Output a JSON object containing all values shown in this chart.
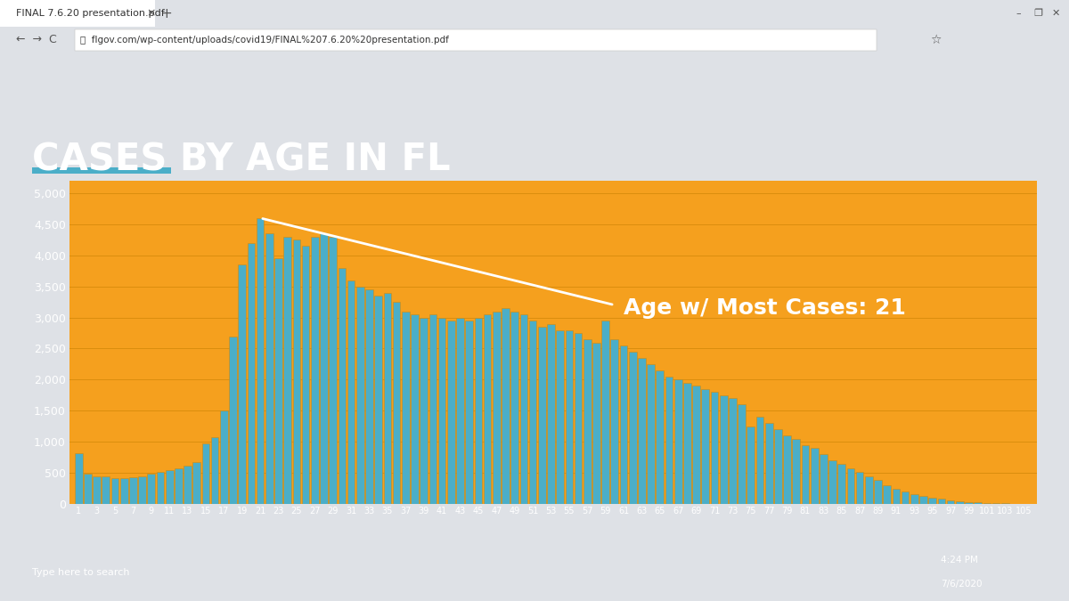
{
  "title": "CASES BY AGE IN FL",
  "title_color": "#FFFFFF",
  "background_color": "#F5A01E",
  "bar_color": "#4BAEC8",
  "bar_edge_color": "#D4890A",
  "grid_color": "#D4890A",
  "underline_color": "#4BAEC8",
  "annotation_text": "Age w/ Most Cases: 21",
  "annotation_color": "#FFFFFF",
  "ylim": [
    0,
    5200
  ],
  "yticks": [
    0,
    500,
    1000,
    1500,
    2000,
    2500,
    3000,
    3500,
    4000,
    4500,
    5000
  ],
  "ages": [
    1,
    2,
    3,
    4,
    5,
    6,
    7,
    8,
    9,
    10,
    11,
    12,
    13,
    14,
    15,
    16,
    17,
    18,
    19,
    20,
    21,
    22,
    23,
    24,
    25,
    26,
    27,
    28,
    29,
    30,
    31,
    32,
    33,
    34,
    35,
    36,
    37,
    38,
    39,
    40,
    41,
    42,
    43,
    44,
    45,
    46,
    47,
    48,
    49,
    50,
    51,
    52,
    53,
    54,
    55,
    56,
    57,
    58,
    59,
    60,
    61,
    62,
    63,
    64,
    65,
    66,
    67,
    68,
    69,
    70,
    71,
    72,
    73,
    74,
    75,
    76,
    77,
    78,
    79,
    80,
    81,
    82,
    83,
    84,
    85,
    86,
    87,
    88,
    89,
    90,
    91,
    92,
    93,
    94,
    95,
    96,
    97,
    98,
    99,
    100,
    101,
    102,
    103,
    104,
    105
  ],
  "values": [
    820,
    490,
    450,
    440,
    420,
    420,
    430,
    450,
    480,
    510,
    550,
    580,
    620,
    680,
    980,
    1080,
    1500,
    2700,
    3850,
    4200,
    4600,
    4350,
    3950,
    4300,
    4250,
    4150,
    4300,
    4350,
    4300,
    3800,
    3600,
    3500,
    3450,
    3350,
    3400,
    3250,
    3100,
    3050,
    3000,
    3050,
    3000,
    2950,
    3000,
    2950,
    3000,
    3050,
    3100,
    3150,
    3100,
    3050,
    2950,
    2850,
    2900,
    2800,
    2800,
    2750,
    2650,
    2600,
    2950,
    2650,
    2550,
    2450,
    2350,
    2250,
    2150,
    2050,
    2000,
    1950,
    1900,
    1850,
    1800,
    1750,
    1700,
    1600,
    1250,
    1400,
    1300,
    1200,
    1100,
    1050,
    950,
    900,
    800,
    700,
    650,
    580,
    520,
    450,
    380,
    300,
    250,
    200,
    160,
    130,
    100,
    80,
    60,
    45,
    35,
    25,
    18,
    14,
    10,
    7,
    5
  ],
  "browser_bg": "#DEE1E6",
  "browser_tab_bg": "#FFFFFF",
  "browser_toolbar_bg": "#F1F3F4",
  "taskbar_bg": "#1E2A3A"
}
